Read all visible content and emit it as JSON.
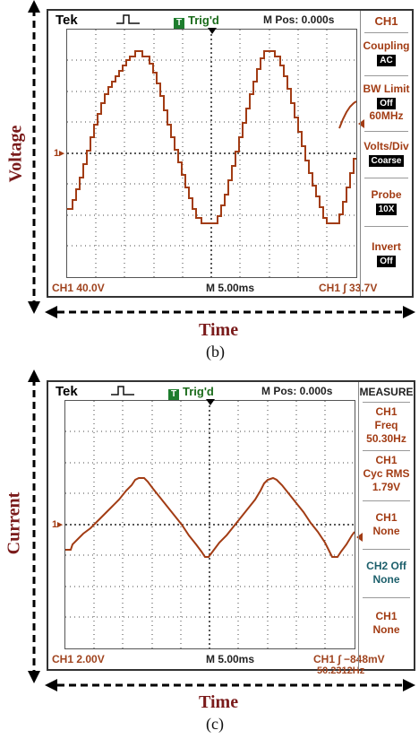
{
  "panel_b": {
    "caption": "(b)",
    "y_axis_label": "Voltage",
    "x_axis_label": "Time",
    "brand": "Tek",
    "trig_icon": "T",
    "trig_status": "Trig'd",
    "mpos": "M Pos: 0.000s",
    "footer_left": "CH1  40.0V",
    "footer_mid": "M 5.00ms",
    "footer_right": "CH1 ∫ 33.7V",
    "ch_marker": "1▸",
    "menu": {
      "title": "CH1",
      "coupling_label": "Coupling",
      "coupling_value": "AC",
      "bw_label": "BW Limit",
      "bw_value": "Off",
      "bw_sub": "60MHz",
      "vdiv_label": "Volts/Div",
      "vdiv_value": "Coarse",
      "probe_label": "Probe",
      "probe_value": "10X",
      "invert_label": "Invert",
      "invert_value": "Off"
    }
  },
  "panel_c": {
    "caption": "(c)",
    "y_axis_label": "Current",
    "x_axis_label": "Time",
    "brand": "Tek",
    "trig_icon": "T",
    "trig_status": "Trig'd",
    "mpos": "M Pos: 0.000s",
    "footer_left": "CH1  2.00V",
    "footer_mid": "M 5.00ms",
    "footer_right": "CH1 ∫ −848mV",
    "footer_right2": "50.2312Hz",
    "ch_marker": "1▸",
    "menu": {
      "title": "MEASURE",
      "m1_a": "CH1",
      "m1_b": "Freq",
      "m1_c": "50.30Hz",
      "m2_a": "CH1",
      "m2_b": "Cyc RMS",
      "m2_c": "1.79V",
      "m3_a": "CH1",
      "m3_b": "None",
      "m4_a": "CH2 Off",
      "m4_b": "None",
      "m5_a": "CH1",
      "m5_b": "None"
    }
  },
  "colors": {
    "trace": "#a23c14",
    "label": "#7a1b1b",
    "trig_green": "#1e7d2e"
  }
}
